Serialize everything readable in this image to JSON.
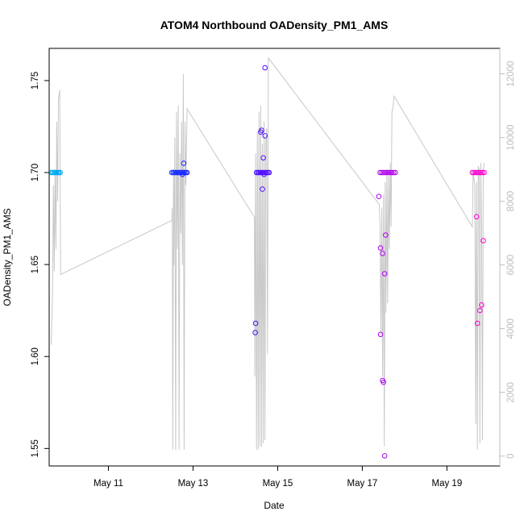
{
  "chart_data": {
    "type": "scatter",
    "title": "ATOM4 Northbound OADensity_PM1_AMS",
    "xlabel": "Date",
    "ylabel": "OADensity_PM1_AMS",
    "x_unit": "days in May",
    "xlim": [
      9.6,
      20.25
    ],
    "ylim": [
      1.5405,
      1.7675
    ],
    "y2lim": [
      -310,
      12800
    ],
    "x_ticks": [
      {
        "value": 11,
        "label": "May 11"
      },
      {
        "value": 13,
        "label": "May 13"
      },
      {
        "value": 15,
        "label": "May 15"
      },
      {
        "value": 17,
        "label": "May 17"
      },
      {
        "value": 19,
        "label": "May 19"
      }
    ],
    "y_ticks": [
      {
        "value": 1.55,
        "label": "1.55"
      },
      {
        "value": 1.6,
        "label": "1.60"
      },
      {
        "value": 1.65,
        "label": "1.65"
      },
      {
        "value": 1.7,
        "label": "1.70"
      },
      {
        "value": 1.75,
        "label": "1.75"
      }
    ],
    "y2_ticks": [
      {
        "value": 0,
        "label": "0"
      },
      {
        "value": 2000,
        "label": "2000"
      },
      {
        "value": 4000,
        "label": "4000"
      },
      {
        "value": 6000,
        "label": "6000"
      },
      {
        "value": 8000,
        "label": "8000"
      },
      {
        "value": 10000,
        "label": "10000"
      },
      {
        "value": 12000,
        "label": "12000"
      }
    ],
    "grid": false,
    "legend": "none",
    "colors": {
      "line": "#c8c8c8",
      "right_axis": "#bdbdbd",
      "gradient": [
        "#00b0f0",
        "#1a1aff",
        "#8b00ff",
        "#ff00cc"
      ]
    },
    "series": [
      {
        "type": "scatter",
        "points": [
          {
            "x": 9.65,
            "y": 1.7
          },
          {
            "x": 9.68,
            "y": 1.7
          },
          {
            "x": 9.71,
            "y": 1.7
          },
          {
            "x": 9.74,
            "y": 1.7
          },
          {
            "x": 9.77,
            "y": 1.7
          },
          {
            "x": 9.8,
            "y": 1.7
          },
          {
            "x": 9.83,
            "y": 1.7
          },
          {
            "x": 9.86,
            "y": 1.7
          },
          {
            "x": 12.5,
            "y": 1.7
          },
          {
            "x": 12.53,
            "y": 1.7
          },
          {
            "x": 12.56,
            "y": 1.7
          },
          {
            "x": 12.59,
            "y": 1.7
          },
          {
            "x": 12.62,
            "y": 1.7
          },
          {
            "x": 12.65,
            "y": 1.7
          },
          {
            "x": 12.68,
            "y": 1.7
          },
          {
            "x": 12.71,
            "y": 1.7
          },
          {
            "x": 12.74,
            "y": 1.7
          },
          {
            "x": 12.77,
            "y": 1.7
          },
          {
            "x": 12.8,
            "y": 1.7
          },
          {
            "x": 12.83,
            "y": 1.7
          },
          {
            "x": 12.86,
            "y": 1.7
          },
          {
            "x": 12.78,
            "y": 1.705
          },
          {
            "x": 12.75,
            "y": 1.699
          },
          {
            "x": 14.5,
            "y": 1.7
          },
          {
            "x": 14.53,
            "y": 1.7
          },
          {
            "x": 14.56,
            "y": 1.7
          },
          {
            "x": 14.59,
            "y": 1.7
          },
          {
            "x": 14.62,
            "y": 1.7
          },
          {
            "x": 14.65,
            "y": 1.7
          },
          {
            "x": 14.68,
            "y": 1.7
          },
          {
            "x": 14.71,
            "y": 1.7
          },
          {
            "x": 14.74,
            "y": 1.7
          },
          {
            "x": 14.77,
            "y": 1.7
          },
          {
            "x": 14.8,
            "y": 1.7
          },
          {
            "x": 14.47,
            "y": 1.613
          },
          {
            "x": 14.48,
            "y": 1.618
          },
          {
            "x": 14.6,
            "y": 1.722
          },
          {
            "x": 14.62,
            "y": 1.723
          },
          {
            "x": 14.66,
            "y": 1.708
          },
          {
            "x": 14.7,
            "y": 1.72
          },
          {
            "x": 14.7,
            "y": 1.757
          },
          {
            "x": 14.64,
            "y": 1.691
          },
          {
            "x": 14.68,
            "y": 1.699
          },
          {
            "x": 17.42,
            "y": 1.7
          },
          {
            "x": 17.46,
            "y": 1.7
          },
          {
            "x": 17.5,
            "y": 1.7
          },
          {
            "x": 17.54,
            "y": 1.7
          },
          {
            "x": 17.58,
            "y": 1.7
          },
          {
            "x": 17.62,
            "y": 1.7
          },
          {
            "x": 17.66,
            "y": 1.7
          },
          {
            "x": 17.7,
            "y": 1.7
          },
          {
            "x": 17.74,
            "y": 1.7
          },
          {
            "x": 17.78,
            "y": 1.7
          },
          {
            "x": 17.39,
            "y": 1.687
          },
          {
            "x": 17.43,
            "y": 1.659
          },
          {
            "x": 17.48,
            "y": 1.656
          },
          {
            "x": 17.55,
            "y": 1.666
          },
          {
            "x": 17.53,
            "y": 1.645
          },
          {
            "x": 17.43,
            "y": 1.612
          },
          {
            "x": 17.48,
            "y": 1.587
          },
          {
            "x": 17.5,
            "y": 1.586
          },
          {
            "x": 17.53,
            "y": 1.546
          },
          {
            "x": 19.6,
            "y": 1.7
          },
          {
            "x": 19.64,
            "y": 1.7
          },
          {
            "x": 19.68,
            "y": 1.7
          },
          {
            "x": 19.72,
            "y": 1.7
          },
          {
            "x": 19.76,
            "y": 1.7
          },
          {
            "x": 19.8,
            "y": 1.7
          },
          {
            "x": 19.84,
            "y": 1.7
          },
          {
            "x": 19.88,
            "y": 1.7
          },
          {
            "x": 19.7,
            "y": 1.676
          },
          {
            "x": 19.72,
            "y": 1.618
          },
          {
            "x": 19.78,
            "y": 1.625
          },
          {
            "x": 19.82,
            "y": 1.628
          },
          {
            "x": 19.86,
            "y": 1.663
          }
        ]
      },
      {
        "type": "line",
        "axis": "right",
        "points": [
          {
            "x": 9.65,
            "y": 3500
          },
          {
            "x": 9.68,
            "y": 5200
          },
          {
            "x": 9.7,
            "y": 8500
          },
          {
            "x": 9.72,
            "y": 5800
          },
          {
            "x": 9.74,
            "y": 9000
          },
          {
            "x": 9.76,
            "y": 6500
          },
          {
            "x": 9.78,
            "y": 10500
          },
          {
            "x": 9.8,
            "y": 8000
          },
          {
            "x": 9.82,
            "y": 11200
          },
          {
            "x": 9.85,
            "y": 11500
          },
          {
            "x": 9.87,
            "y": 5700
          },
          {
            "x": 12.5,
            "y": 7400
          },
          {
            "x": 12.51,
            "y": 7800
          },
          {
            "x": 12.52,
            "y": 200
          },
          {
            "x": 12.54,
            "y": 9000
          },
          {
            "x": 12.55,
            "y": 6000
          },
          {
            "x": 12.57,
            "y": 10000
          },
          {
            "x": 12.59,
            "y": 200
          },
          {
            "x": 12.61,
            "y": 10800
          },
          {
            "x": 12.63,
            "y": 6500
          },
          {
            "x": 12.65,
            "y": 11000
          },
          {
            "x": 12.67,
            "y": 200
          },
          {
            "x": 12.69,
            "y": 9500
          },
          {
            "x": 12.71,
            "y": 7000
          },
          {
            "x": 12.73,
            "y": 10500
          },
          {
            "x": 12.75,
            "y": 6000
          },
          {
            "x": 12.77,
            "y": 12000
          },
          {
            "x": 12.79,
            "y": 200
          },
          {
            "x": 12.81,
            "y": 10500
          },
          {
            "x": 12.83,
            "y": 8500
          },
          {
            "x": 12.86,
            "y": 10900
          },
          {
            "x": 14.45,
            "y": 7500
          },
          {
            "x": 14.46,
            "y": 2500
          },
          {
            "x": 14.48,
            "y": 9500
          },
          {
            "x": 14.5,
            "y": 200
          },
          {
            "x": 14.52,
            "y": 10200
          },
          {
            "x": 14.54,
            "y": 200
          },
          {
            "x": 14.56,
            "y": 10800
          },
          {
            "x": 14.58,
            "y": 300
          },
          {
            "x": 14.6,
            "y": 11000
          },
          {
            "x": 14.62,
            "y": 300
          },
          {
            "x": 14.64,
            "y": 9800
          },
          {
            "x": 14.66,
            "y": 400
          },
          {
            "x": 14.68,
            "y": 10500
          },
          {
            "x": 14.7,
            "y": 500
          },
          {
            "x": 14.72,
            "y": 9800
          },
          {
            "x": 14.74,
            "y": 10300
          },
          {
            "x": 14.76,
            "y": 3200
          },
          {
            "x": 14.78,
            "y": 12500
          },
          {
            "x": 17.4,
            "y": 7900
          },
          {
            "x": 17.42,
            "y": 7200
          },
          {
            "x": 17.44,
            "y": 3800
          },
          {
            "x": 17.46,
            "y": 7800
          },
          {
            "x": 17.48,
            "y": 2500
          },
          {
            "x": 17.5,
            "y": 8200
          },
          {
            "x": 17.52,
            "y": 300
          },
          {
            "x": 17.54,
            "y": 8600
          },
          {
            "x": 17.56,
            "y": 4500
          },
          {
            "x": 17.58,
            "y": 9000
          },
          {
            "x": 17.6,
            "y": 4800
          },
          {
            "x": 17.62,
            "y": 8800
          },
          {
            "x": 17.64,
            "y": 6500
          },
          {
            "x": 17.66,
            "y": 9200
          },
          {
            "x": 17.68,
            "y": 7200
          },
          {
            "x": 17.7,
            "y": 10800
          },
          {
            "x": 17.72,
            "y": 10900
          },
          {
            "x": 17.75,
            "y": 11300
          },
          {
            "x": 19.6,
            "y": 7200
          },
          {
            "x": 19.62,
            "y": 8900
          },
          {
            "x": 19.64,
            "y": 8700
          },
          {
            "x": 19.66,
            "y": 8500
          },
          {
            "x": 19.68,
            "y": 1000
          },
          {
            "x": 19.7,
            "y": 8600
          },
          {
            "x": 19.72,
            "y": 200
          },
          {
            "x": 19.74,
            "y": 9100
          },
          {
            "x": 19.76,
            "y": 9000
          },
          {
            "x": 19.78,
            "y": 400
          },
          {
            "x": 19.8,
            "y": 9200
          },
          {
            "x": 19.82,
            "y": 7200
          },
          {
            "x": 19.84,
            "y": 500
          },
          {
            "x": 19.86,
            "y": 9000
          },
          {
            "x": 19.88,
            "y": 9200
          }
        ]
      }
    ]
  }
}
